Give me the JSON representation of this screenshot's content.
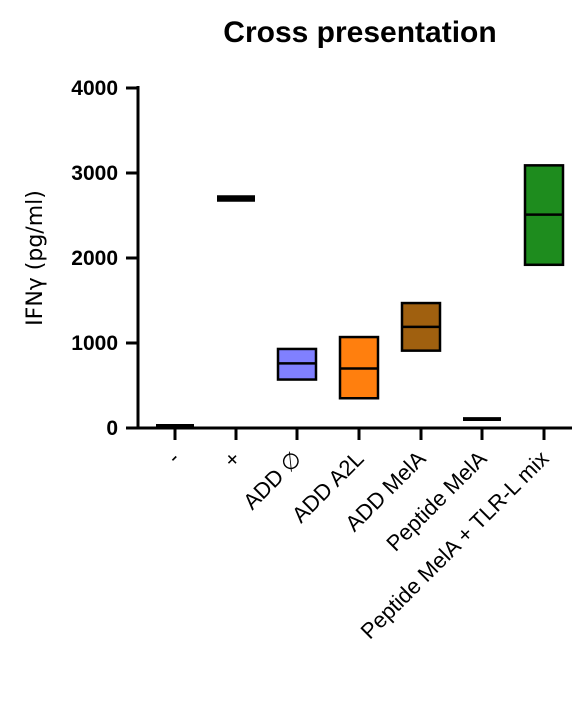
{
  "chart_data": {
    "type": "box",
    "title": "Cross presentation",
    "xlabel": "",
    "ylabel": "IFNγ (pg/ml)",
    "ylim": [
      0,
      4000
    ],
    "yticks": [
      0,
      1000,
      2000,
      3000,
      4000
    ],
    "yticks_labels": [
      "0",
      "1000",
      "2000",
      "3000",
      "4000"
    ],
    "grid": false,
    "categories": [
      "-",
      "+",
      "ADD ∅",
      "ADD A2L",
      "ADD MelA",
      "Peptide MelA",
      "Peptide MelA + TLR-L mix"
    ],
    "series": [
      {
        "boxes": [
          {
            "category": "-",
            "min": 20,
            "median": 25,
            "max": 30,
            "color": "#000000"
          },
          {
            "category": "+",
            "min": 2680,
            "median": 2700,
            "max": 2720,
            "color": "#000000"
          },
          {
            "category": "ADD ∅",
            "min": 570,
            "median": 760,
            "max": 930,
            "color": "#8080ff"
          },
          {
            "category": "ADD A2L",
            "min": 350,
            "median": 700,
            "max": 1070,
            "color": "#ff7f0e"
          },
          {
            "category": "ADD MelA",
            "min": 910,
            "median": 1190,
            "max": 1470,
            "color": "#a0600f"
          },
          {
            "category": "Peptide MelA",
            "min": 100,
            "median": 105,
            "max": 110,
            "color": "#000000"
          },
          {
            "category": "Peptide MelA + TLR-L mix",
            "min": 1920,
            "median": 2510,
            "max": 3090,
            "color": "#1e8c1e"
          }
        ]
      }
    ]
  }
}
